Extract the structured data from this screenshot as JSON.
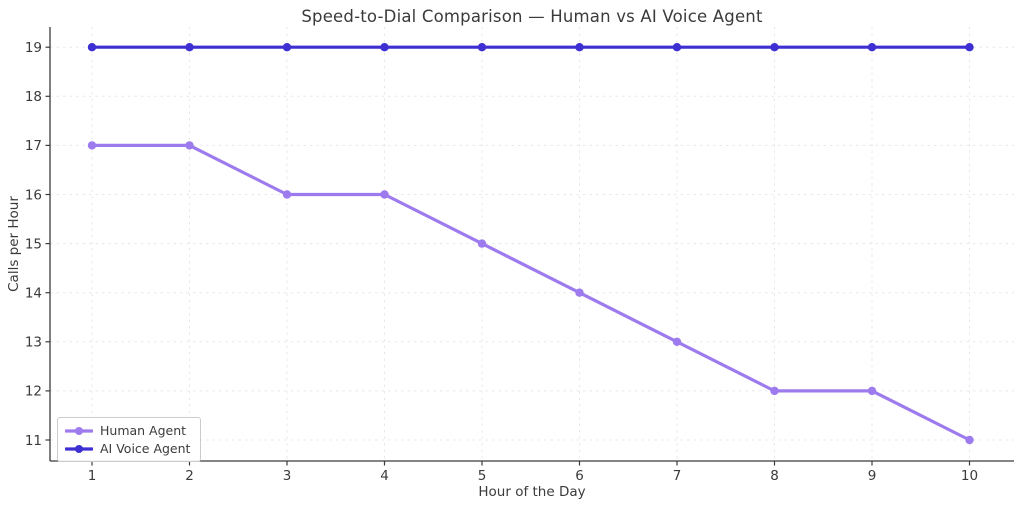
{
  "chart_data": {
    "type": "line",
    "title": "Speed-to-Dial Comparison — Human vs AI Voice Agent",
    "xlabel": "Hour of the Day",
    "ylabel": "Calls per Hour",
    "x": [
      1,
      2,
      3,
      4,
      5,
      6,
      7,
      8,
      9,
      10
    ],
    "series": [
      {
        "name": "Human Agent",
        "color": "#9d7bee",
        "values": [
          17,
          17,
          16,
          16,
          15,
          14,
          13,
          12,
          12,
          11
        ]
      },
      {
        "name": "AI Voice Agent",
        "color": "#3d2fd2",
        "values": [
          19,
          19,
          19,
          19,
          19,
          19,
          19,
          19,
          19,
          19
        ]
      }
    ],
    "xticks": [
      1,
      2,
      3,
      4,
      5,
      6,
      7,
      8,
      9,
      10
    ],
    "yticks": [
      11,
      12,
      13,
      14,
      15,
      16,
      17,
      18,
      19
    ],
    "xlim": [
      0.57,
      10.45
    ],
    "ylim": [
      10.57,
      19.43
    ],
    "grid": {
      "show": true,
      "style": "dashed",
      "color": "#e8e8e8"
    },
    "legend": {
      "position": "lower-left",
      "border_color": "#cccccc",
      "background": "#ffffff"
    },
    "axis_color": "#3b3b3b",
    "text_color": "#3b3b3b",
    "title_color": "#3a3a3a"
  }
}
